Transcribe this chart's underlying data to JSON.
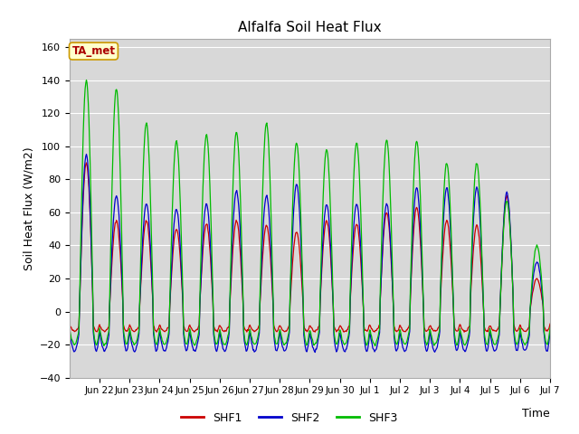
{
  "title": "Alfalfa Soil Heat Flux",
  "xlabel": "Time",
  "ylabel": "Soil Heat Flux (W/m2)",
  "ylim": [
    -40,
    165
  ],
  "yticks": [
    -40,
    -20,
    0,
    20,
    40,
    60,
    80,
    100,
    120,
    140,
    160
  ],
  "legend_labels": [
    "SHF1",
    "SHF2",
    "SHF3"
  ],
  "legend_colors": [
    "#cc0000",
    "#0000cc",
    "#00bb00"
  ],
  "annotation_text": "TA_met",
  "annotation_color": "#aa0000",
  "annotation_bg": "#ffffcc",
  "annotation_border": "#cc9900",
  "plot_bg": "#d8d8d8",
  "grid_color": "#bbbbbb",
  "num_days": 16,
  "time_step_hours": 0.5,
  "tick_labels": [
    "Jun 22",
    "Jun 23",
    "Jun 24",
    "Jun 25",
    "Jun 26",
    "Jun 27",
    "Jun 28",
    "Jun 29",
    "Jun 30",
    "Jul 1",
    "Jul 2",
    "Jul 3",
    "Jul 4",
    "Jul 5",
    "Jul 6",
    "Jul 7"
  ],
  "day_amplitudes_shf1": [
    90,
    55,
    55,
    50,
    53,
    55,
    52,
    48,
    55,
    53,
    60,
    63,
    55,
    52,
    70,
    20
  ],
  "day_amplitudes_shf2": [
    95,
    70,
    65,
    62,
    65,
    73,
    70,
    77,
    65,
    65,
    65,
    75,
    75,
    75,
    72,
    30
  ],
  "day_amplitudes_shf3": [
    140,
    135,
    114,
    103,
    107,
    109,
    114,
    102,
    98,
    102,
    104,
    103,
    90,
    90,
    67,
    40
  ]
}
